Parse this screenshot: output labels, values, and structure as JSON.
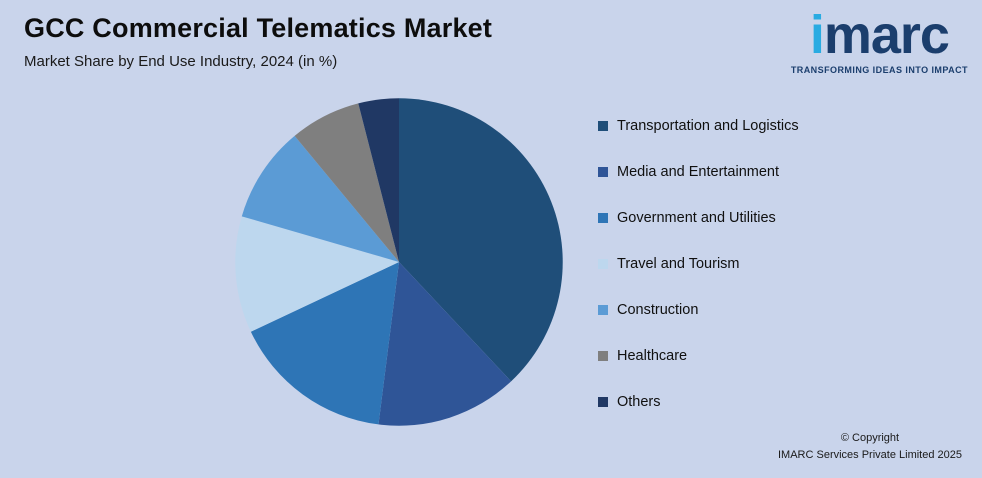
{
  "header": {
    "title": "GCC Commercial Telematics Market",
    "subtitle": "Market Share by End Use Industry, 2024 (in %)"
  },
  "logo": {
    "brand_i": "i",
    "brand_rest": "marc",
    "tagline": "TRANSFORMING IDEAS INTO IMPACT"
  },
  "chart_data": {
    "type": "pie",
    "title": "GCC Commercial Telematics Market",
    "subtitle": "Market Share by End Use Industry, 2024 (in %)",
    "labels": [
      "Transportation and Logistics",
      "Media and Entertainment",
      "Government and Utilities",
      "Travel and Tourism",
      "Construction",
      "Healthcare",
      "Others"
    ],
    "values": [
      38,
      14,
      16,
      11.5,
      9.5,
      7,
      4
    ],
    "colors": [
      "#1F4E79",
      "#2F5597",
      "#2E75B6",
      "#BDD7EE",
      "#5B9BD5",
      "#7F7F7F",
      "#203864"
    ],
    "legend_position": "right",
    "start_angle_deg": 0,
    "direction": "clockwise"
  },
  "footer": {
    "copyright_line1": "© Copyright",
    "copyright_line2": "IMARC Services Private Limited 2025"
  },
  "colors": {
    "background": "#C9D4EB",
    "title_text": "#0d0d0d",
    "logo_navy": "#1B3E6D",
    "logo_cyan": "#29ABE2"
  }
}
